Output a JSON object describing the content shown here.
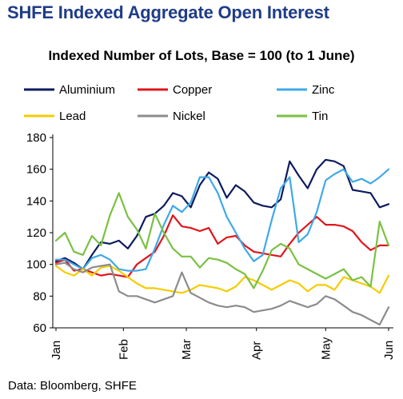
{
  "title": "SHFE Indexed Aggregate Open Interest",
  "chart_data": {
    "type": "line",
    "title": "SHFE Indexed Aggregate Open Interest",
    "subtitle": "Indexed Number of Lots, Base = 100 (to 1 June)",
    "xlabel": "",
    "ylabel": "",
    "ylim": [
      60,
      180
    ],
    "yticks": [
      60,
      80,
      100,
      120,
      140,
      160,
      180
    ],
    "xticks": [
      "Jan",
      "Feb",
      "Mar",
      "Apr",
      "May",
      "Jun"
    ],
    "grid": false,
    "legend_position": "top",
    "x": [
      "Jan 4",
      "Jan 8",
      "Jan 12",
      "Jan 16",
      "Jan 20",
      "Jan 24",
      "Jan 28",
      "Feb 1",
      "Feb 5",
      "Feb 9",
      "Feb 13",
      "Feb 17",
      "Feb 21",
      "Feb 25",
      "Mar 1",
      "Mar 5",
      "Mar 9",
      "Mar 13",
      "Mar 17",
      "Mar 21",
      "Mar 25",
      "Mar 29",
      "Apr 2",
      "Apr 6",
      "Apr 10",
      "Apr 14",
      "Apr 18",
      "Apr 22",
      "Apr 26",
      "Apr 30",
      "May 4",
      "May 8",
      "May 12",
      "May 16",
      "May 20",
      "May 24",
      "May 28",
      "Jun 1"
    ],
    "series": [
      {
        "name": "Aluminium",
        "color": "#0d1b5e",
        "values": [
          102,
          104,
          101,
          97,
          106,
          114,
          113,
          115,
          110,
          118,
          130,
          132,
          137,
          145,
          143,
          136,
          150,
          158,
          154,
          142,
          150,
          146,
          139,
          137,
          136,
          141,
          165,
          156,
          148,
          160,
          166,
          165,
          162,
          147,
          146,
          145,
          136,
          138
        ]
      },
      {
        "name": "Copper",
        "color": "#e0161b",
        "values": [
          101,
          103,
          96,
          97,
          95,
          93,
          94,
          93,
          92,
          100,
          104,
          108,
          118,
          131,
          124,
          123,
          121,
          123,
          113,
          117,
          118,
          112,
          108,
          107,
          106,
          105,
          113,
          120,
          125,
          130,
          125,
          125,
          124,
          121,
          114,
          109,
          112,
          112
        ]
      },
      {
        "name": "Zinc",
        "color": "#3fa9e8",
        "values": [
          103,
          103,
          100,
          97,
          104,
          106,
          103,
          97,
          96,
          96,
          97,
          110,
          125,
          137,
          133,
          139,
          155,
          155,
          145,
          130,
          120,
          110,
          102,
          106,
          128,
          148,
          155,
          114,
          119,
          133,
          153,
          157,
          160,
          152,
          154,
          151,
          155,
          160
        ]
      },
      {
        "name": "Lead",
        "color": "#f5cc00",
        "values": [
          99,
          95,
          93,
          97,
          93,
          98,
          99,
          96,
          92,
          88,
          85,
          85,
          84,
          83,
          82,
          84,
          87,
          86,
          85,
          83,
          86,
          92,
          90,
          87,
          84,
          87,
          90,
          88,
          83,
          87,
          87,
          84,
          92,
          90,
          88,
          86,
          82,
          93
        ]
      },
      {
        "name": "Nickel",
        "color": "#8c8c8c",
        "values": [
          100,
          101,
          97,
          95,
          98,
          99,
          100,
          83,
          80,
          80,
          78,
          76,
          78,
          80,
          95,
          82,
          79,
          76,
          74,
          73,
          74,
          73,
          70,
          71,
          72,
          74,
          77,
          75,
          73,
          75,
          80,
          78,
          74,
          70,
          68,
          65,
          62,
          73
        ]
      },
      {
        "name": "Tin",
        "color": "#7ac142",
        "values": [
          115,
          120,
          108,
          106,
          118,
          112,
          131,
          145,
          130,
          122,
          110,
          132,
          120,
          110,
          105,
          105,
          98,
          104,
          103,
          101,
          97,
          94,
          85,
          96,
          109,
          113,
          110,
          100,
          97,
          94,
          91,
          94,
          97,
          90,
          92,
          86,
          127,
          112
        ]
      }
    ]
  },
  "source": "Data: Bloomberg, SHFE"
}
